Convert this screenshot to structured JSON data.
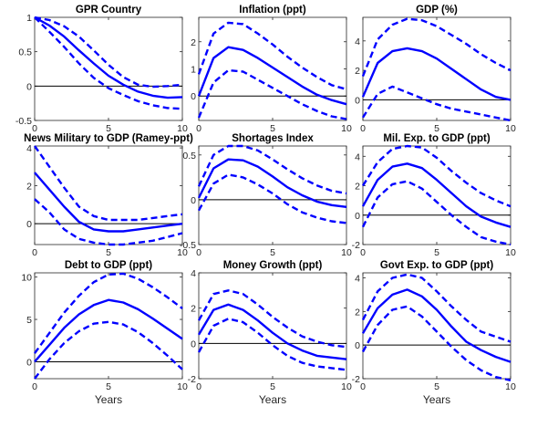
{
  "colors": {
    "series": "#0000ff",
    "zero_line": "#000000",
    "axes": "#262626",
    "background": "#ffffff"
  },
  "chart_data": [
    {
      "type": "line",
      "title": "GPR Country",
      "xlabel": "",
      "xlim": [
        0,
        10
      ],
      "xticks": [
        0,
        5,
        10
      ],
      "ylim": [
        -0.5,
        1
      ],
      "yticks": [
        -0.5,
        0,
        0.5,
        1
      ],
      "grid": false,
      "x": [
        0,
        1,
        2,
        3,
        4,
        5,
        6,
        7,
        8,
        9,
        10
      ],
      "series": [
        {
          "style": "solid",
          "values": [
            1.0,
            0.88,
            0.72,
            0.52,
            0.33,
            0.15,
            0.02,
            -0.08,
            -0.14,
            -0.17,
            -0.16
          ]
        },
        {
          "style": "dashed",
          "values": [
            1.0,
            0.96,
            0.87,
            0.72,
            0.52,
            0.31,
            0.13,
            0.02,
            -0.01,
            0.0,
            0.02
          ]
        },
        {
          "style": "dashed",
          "values": [
            1.0,
            0.79,
            0.57,
            0.33,
            0.12,
            -0.03,
            -0.13,
            -0.22,
            -0.28,
            -0.32,
            -0.33
          ]
        }
      ]
    },
    {
      "type": "line",
      "title": "Inflation (ppt)",
      "xlabel": "",
      "xlim": [
        0,
        10
      ],
      "xticks": [
        0,
        5,
        10
      ],
      "ylim": [
        -0.9,
        2.9
      ],
      "yticks": [
        0,
        1,
        2
      ],
      "grid": false,
      "x": [
        0,
        1,
        2,
        3,
        4,
        5,
        6,
        7,
        8,
        9,
        10
      ],
      "series": [
        {
          "style": "solid",
          "values": [
            0.0,
            1.4,
            1.8,
            1.7,
            1.4,
            1.05,
            0.7,
            0.35,
            0.05,
            -0.15,
            -0.3
          ]
        },
        {
          "style": "dashed",
          "values": [
            0.8,
            2.3,
            2.7,
            2.65,
            2.3,
            1.9,
            1.45,
            1.05,
            0.7,
            0.4,
            0.25
          ]
        },
        {
          "style": "dashed",
          "values": [
            -0.8,
            0.5,
            0.95,
            0.9,
            0.6,
            0.3,
            0.0,
            -0.3,
            -0.55,
            -0.75,
            -0.85
          ]
        }
      ]
    },
    {
      "type": "line",
      "title": "GDP (%)",
      "xlabel": "",
      "xlim": [
        0,
        10
      ],
      "xticks": [
        0,
        5,
        10
      ],
      "ylim": [
        -1.4,
        5.6
      ],
      "yticks": [
        0,
        2,
        4
      ],
      "grid": false,
      "x": [
        0,
        1,
        2,
        3,
        4,
        5,
        6,
        7,
        8,
        9,
        10
      ],
      "series": [
        {
          "style": "solid",
          "values": [
            0.2,
            2.5,
            3.3,
            3.5,
            3.3,
            2.8,
            2.1,
            1.4,
            0.7,
            0.2,
            0.0
          ]
        },
        {
          "style": "dashed",
          "values": [
            1.6,
            4.1,
            5.1,
            5.5,
            5.4,
            5.0,
            4.4,
            3.8,
            3.1,
            2.5,
            2.0
          ]
        },
        {
          "style": "dashed",
          "values": [
            -1.2,
            0.4,
            0.9,
            0.5,
            0.1,
            -0.3,
            -0.6,
            -0.8,
            -1.0,
            -1.2,
            -1.4
          ]
        }
      ]
    },
    {
      "type": "line",
      "title": "News Military to GDP (Ramey-ppt)",
      "xlabel": "",
      "xlim": [
        0,
        10
      ],
      "xticks": [
        0,
        5,
        10
      ],
      "ylim": [
        -1.1,
        4.1
      ],
      "yticks": [
        0,
        2,
        4
      ],
      "grid": false,
      "x": [
        0,
        1,
        2,
        3,
        4,
        5,
        6,
        7,
        8,
        9,
        10
      ],
      "series": [
        {
          "style": "solid",
          "values": [
            2.7,
            1.8,
            0.9,
            0.1,
            -0.3,
            -0.4,
            -0.4,
            -0.3,
            -0.2,
            -0.1,
            0.0
          ]
        },
        {
          "style": "dashed",
          "values": [
            4.1,
            3.0,
            1.9,
            0.9,
            0.4,
            0.2,
            0.2,
            0.2,
            0.3,
            0.4,
            0.5
          ]
        },
        {
          "style": "dashed",
          "values": [
            1.3,
            0.6,
            -0.3,
            -0.8,
            -1.0,
            -1.1,
            -1.1,
            -1.0,
            -0.9,
            -0.7,
            -0.5
          ]
        }
      ]
    },
    {
      "type": "line",
      "title": "Shortages Index",
      "xlabel": "",
      "xlim": [
        0,
        10
      ],
      "xticks": [
        0,
        5,
        10
      ],
      "ylim": [
        -0.5,
        0.6
      ],
      "yticks": [
        -0.5,
        0,
        0.5
      ],
      "grid": false,
      "x": [
        0,
        1,
        2,
        3,
        4,
        5,
        6,
        7,
        8,
        9,
        10
      ],
      "series": [
        {
          "style": "solid",
          "values": [
            0.02,
            0.35,
            0.45,
            0.44,
            0.37,
            0.26,
            0.14,
            0.05,
            -0.02,
            -0.06,
            -0.08
          ]
        },
        {
          "style": "dashed",
          "values": [
            0.15,
            0.5,
            0.6,
            0.6,
            0.55,
            0.45,
            0.34,
            0.24,
            0.16,
            0.1,
            0.07
          ]
        },
        {
          "style": "dashed",
          "values": [
            -0.12,
            0.18,
            0.28,
            0.25,
            0.17,
            0.07,
            -0.05,
            -0.14,
            -0.2,
            -0.24,
            -0.26
          ]
        }
      ]
    },
    {
      "type": "line",
      "title": "Mil. Exp. to GDP (ppt)",
      "xlabel": "",
      "xlim": [
        0,
        10
      ],
      "xticks": [
        0,
        5,
        10
      ],
      "ylim": [
        -2,
        4.7
      ],
      "yticks": [
        -2,
        0,
        2,
        4
      ],
      "grid": false,
      "x": [
        0,
        1,
        2,
        3,
        4,
        5,
        6,
        7,
        8,
        9,
        10
      ],
      "series": [
        {
          "style": "solid",
          "values": [
            0.6,
            2.4,
            3.3,
            3.5,
            3.2,
            2.4,
            1.5,
            0.6,
            -0.1,
            -0.5,
            -0.8
          ]
        },
        {
          "style": "dashed",
          "values": [
            2.0,
            3.6,
            4.5,
            4.7,
            4.6,
            3.9,
            3.0,
            2.2,
            1.5,
            1.0,
            0.6
          ]
        },
        {
          "style": "dashed",
          "values": [
            -0.8,
            1.2,
            2.1,
            2.3,
            1.8,
            0.9,
            0.0,
            -0.8,
            -1.5,
            -1.8,
            -2.0
          ]
        }
      ]
    },
    {
      "type": "line",
      "title": "Debt to GDP (ppt)",
      "xlabel": "Years",
      "xlim": [
        0,
        10
      ],
      "xticks": [
        0,
        5,
        10
      ],
      "ylim": [
        -2,
        10.5
      ],
      "yticks": [
        0,
        5,
        10
      ],
      "grid": false,
      "x": [
        0,
        1,
        2,
        3,
        4,
        5,
        6,
        7,
        8,
        9,
        10
      ],
      "series": [
        {
          "style": "solid",
          "values": [
            0.0,
            2.0,
            4.0,
            5.6,
            6.7,
            7.3,
            7.0,
            6.2,
            5.1,
            3.9,
            2.7
          ]
        },
        {
          "style": "dashed",
          "values": [
            1.0,
            3.4,
            5.8,
            7.8,
            9.4,
            10.3,
            10.4,
            9.8,
            8.8,
            7.6,
            6.3
          ]
        },
        {
          "style": "dashed",
          "values": [
            -2.0,
            0.3,
            2.2,
            3.6,
            4.5,
            4.7,
            4.4,
            3.5,
            2.2,
            0.7,
            -0.9
          ]
        }
      ]
    },
    {
      "type": "line",
      "title": "Money Growth (ppt)",
      "xlabel": "Years",
      "xlim": [
        0,
        10
      ],
      "xticks": [
        0,
        5,
        10
      ],
      "ylim": [
        -2,
        4
      ],
      "yticks": [
        -2,
        0,
        2,
        4
      ],
      "grid": false,
      "x": [
        0,
        1,
        2,
        3,
        4,
        5,
        6,
        7,
        8,
        9,
        10
      ],
      "series": [
        {
          "style": "solid",
          "values": [
            0.5,
            1.9,
            2.2,
            1.9,
            1.3,
            0.6,
            0.0,
            -0.4,
            -0.7,
            -0.8,
            -0.9
          ]
        },
        {
          "style": "dashed",
          "values": [
            1.3,
            2.8,
            3.0,
            2.8,
            2.2,
            1.5,
            0.9,
            0.4,
            0.1,
            -0.1,
            -0.2
          ]
        },
        {
          "style": "dashed",
          "values": [
            -0.5,
            1.0,
            1.4,
            1.2,
            0.6,
            -0.1,
            -0.7,
            -1.1,
            -1.3,
            -1.4,
            -1.5
          ]
        }
      ]
    },
    {
      "type": "line",
      "title": "Govt Exp. to GDP (ppt)",
      "xlabel": "Years",
      "xlim": [
        0,
        10
      ],
      "xticks": [
        0,
        5,
        10
      ],
      "ylim": [
        -2,
        4.3
      ],
      "yticks": [
        -2,
        0,
        2,
        4
      ],
      "grid": false,
      "x": [
        0,
        1,
        2,
        3,
        4,
        5,
        6,
        7,
        8,
        9,
        10
      ],
      "series": [
        {
          "style": "solid",
          "values": [
            0.7,
            2.2,
            3.0,
            3.3,
            2.9,
            2.1,
            1.1,
            0.2,
            -0.3,
            -0.7,
            -1.0
          ]
        },
        {
          "style": "dashed",
          "values": [
            1.5,
            3.2,
            4.0,
            4.2,
            4.0,
            3.2,
            2.3,
            1.5,
            0.8,
            0.5,
            0.2
          ]
        },
        {
          "style": "dashed",
          "values": [
            -0.4,
            1.2,
            2.1,
            2.3,
            1.7,
            0.8,
            -0.1,
            -0.9,
            -1.5,
            -1.9,
            -2.1
          ]
        }
      ]
    }
  ]
}
